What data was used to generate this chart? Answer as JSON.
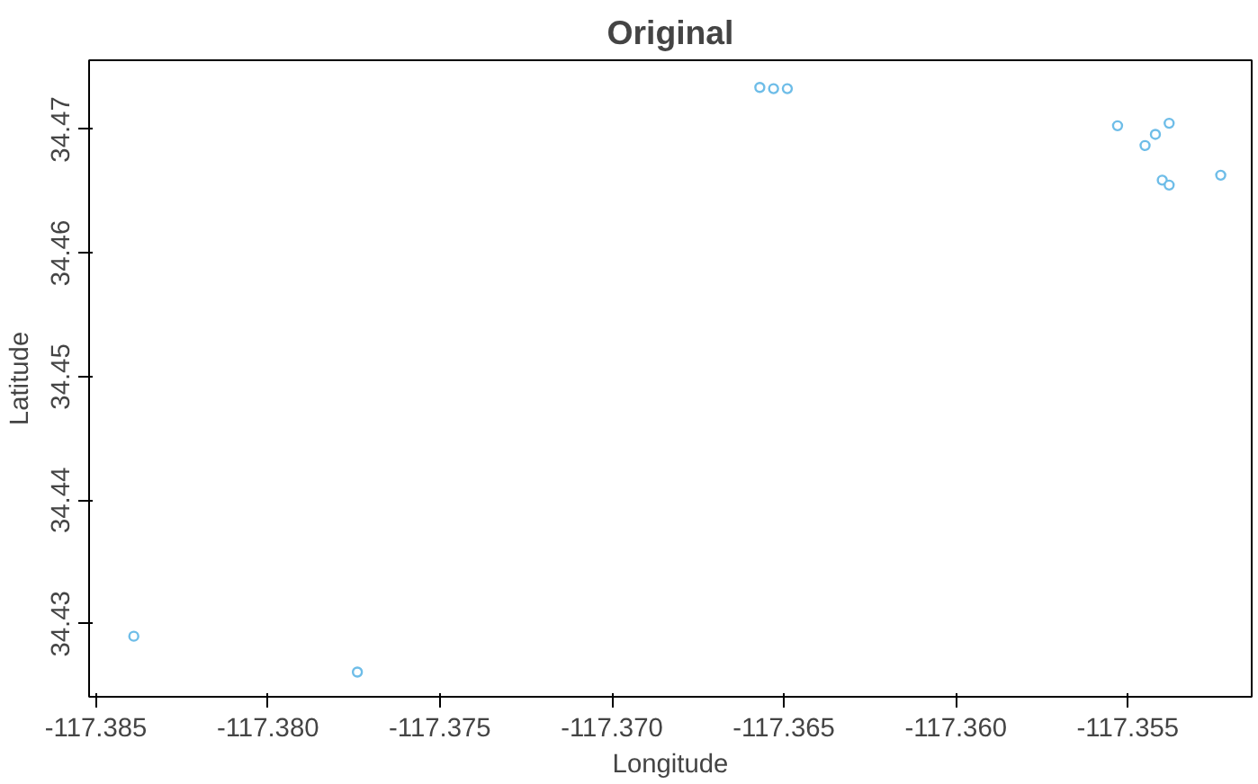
{
  "chart_data": {
    "type": "scatter",
    "title": "Original",
    "xlabel": "Longitude",
    "ylabel": "Latitude",
    "xlim": [
      -117.3852,
      -117.3514
    ],
    "ylim": [
      34.4241,
      34.4756
    ],
    "xticks": [
      {
        "value": -117.385,
        "label": "-117.385"
      },
      {
        "value": -117.38,
        "label": "-117.380"
      },
      {
        "value": -117.375,
        "label": "-117.375"
      },
      {
        "value": -117.37,
        "label": "-117.370"
      },
      {
        "value": -117.365,
        "label": "-117.365"
      },
      {
        "value": -117.36,
        "label": "-117.360"
      },
      {
        "value": -117.355,
        "label": "-117.355"
      }
    ],
    "yticks": [
      34.43,
      34.44,
      34.45,
      34.46,
      34.47
    ],
    "grid": false,
    "marker": "circle",
    "series": [
      {
        "color": "#6ebde8",
        "x": [
          -117.3657,
          -117.3653,
          -117.3649,
          -117.3553,
          -117.3538,
          -117.3542,
          -117.3545,
          -117.354,
          -117.3538,
          -117.3523,
          -117.3839,
          -117.3774
        ],
        "values": [
          34.4734,
          34.4733,
          34.4733,
          34.4703,
          34.4705,
          34.4696,
          34.4687,
          34.4659,
          34.4655,
          34.4663,
          34.429,
          34.4261
        ]
      }
    ]
  }
}
